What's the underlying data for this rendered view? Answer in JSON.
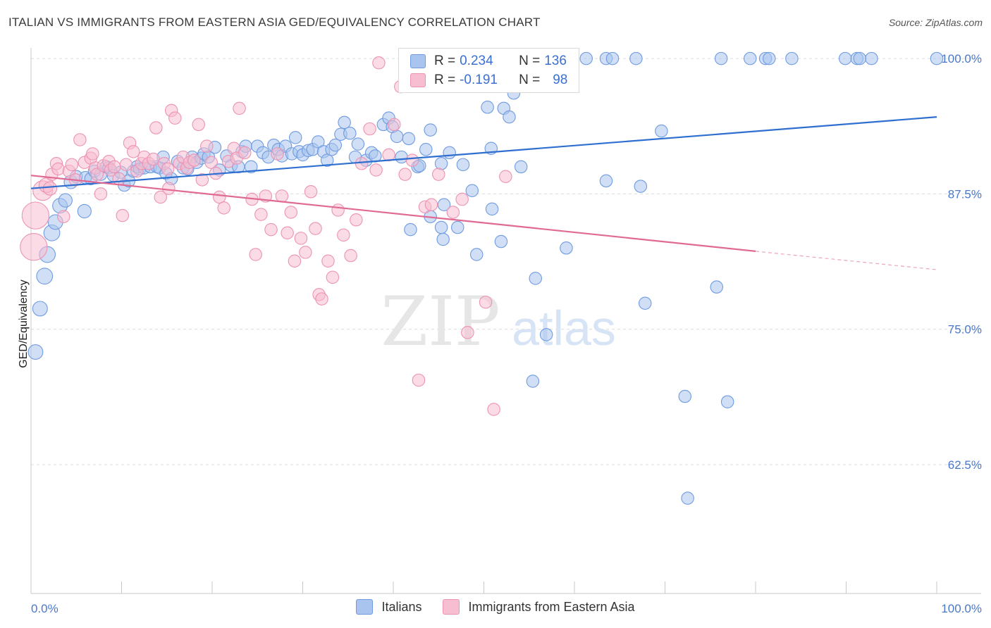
{
  "header": {
    "title": "ITALIAN VS IMMIGRANTS FROM EASTERN ASIA GED/EQUIVALENCY CORRELATION CHART",
    "source": "Source: ZipAtlas.com"
  },
  "watermark": {
    "zip": "ZIP",
    "atlas": "atlas"
  },
  "legend": {
    "r_label": "R =",
    "n_label": "N =",
    "rows": [
      {
        "r": "0.234",
        "n": "136"
      },
      {
        "r": "-0.191",
        "n": "98"
      }
    ]
  },
  "bottom_legend": [
    "Italians",
    "Immigrants from Eastern Asia"
  ],
  "colors": {
    "blue_fill": "#a9c4ee",
    "blue_stroke": "#6f9be0",
    "blue_line": "#2f6fd0",
    "pink_fill": "#f7bdd0",
    "pink_stroke": "#ec93b2",
    "pink_line": "#e06a93",
    "tick_text": "#4a78c9"
  },
  "chart_data": {
    "type": "scatter",
    "title": "ITALIAN VS IMMIGRANTS FROM EASTERN ASIA GED/EQUIVALENCY CORRELATION CHART",
    "xlabel": "",
    "ylabel": "GED/Equivalency",
    "xlim": [
      0,
      100
    ],
    "ylim": [
      50.6,
      101.5
    ],
    "x_tick_labels": [
      "0.0%",
      "100.0%"
    ],
    "y_ticks": [
      62.5,
      75.0,
      87.5,
      100.0
    ],
    "y_tick_labels": [
      "62.5%",
      "75.0%",
      "87.5%",
      "100.0%"
    ],
    "grid": true,
    "legend_position": "top-center",
    "series": [
      {
        "name": "Italians",
        "r": 0.234,
        "n": 136,
        "trend": {
          "x": [
            0,
            100
          ],
          "y": [
            88.0,
            94.6
          ]
        },
        "points": [
          [
            0.5,
            72.9,
            12
          ],
          [
            1.0,
            76.9,
            12
          ],
          [
            1.5,
            79.9,
            13
          ],
          [
            1.8,
            81.9,
            13
          ],
          [
            2.3,
            83.9,
            13
          ],
          [
            2.7,
            84.9,
            12
          ],
          [
            3.2,
            86.4,
            12
          ],
          [
            3.8,
            86.9,
            11
          ],
          [
            5.9,
            85.9,
            11
          ],
          [
            4.4,
            88.6,
            11
          ],
          [
            5.0,
            89.1,
            10
          ],
          [
            6.0,
            89.0,
            10
          ],
          [
            6.6,
            88.9,
            10
          ],
          [
            7.0,
            89.6,
            10
          ],
          [
            7.7,
            89.3,
            10
          ],
          [
            8.3,
            90.0,
            10
          ],
          [
            8.6,
            89.9,
            10
          ],
          [
            9.1,
            89.2,
            10
          ],
          [
            9.9,
            89.5,
            10
          ],
          [
            10.3,
            88.3,
            10
          ],
          [
            10.8,
            88.7,
            10
          ],
          [
            11.3,
            89.6,
            10
          ],
          [
            11.7,
            90.0,
            10
          ],
          [
            12.0,
            89.8,
            10
          ],
          [
            12.5,
            89.9,
            10
          ],
          [
            13.2,
            90.0,
            10
          ],
          [
            13.9,
            90.0,
            10
          ],
          [
            14.2,
            89.9,
            10
          ],
          [
            14.6,
            90.9,
            10
          ],
          [
            14.9,
            89.4,
            10
          ],
          [
            15.5,
            88.9,
            10
          ],
          [
            16.2,
            90.5,
            10
          ],
          [
            16.8,
            89.9,
            10
          ],
          [
            17.3,
            89.8,
            10
          ],
          [
            17.8,
            90.9,
            10
          ],
          [
            18.3,
            90.4,
            10
          ],
          [
            18.8,
            90.8,
            10
          ],
          [
            19.1,
            91.2,
            10
          ],
          [
            19.6,
            90.9,
            10
          ],
          [
            20.3,
            91.8,
            10
          ],
          [
            20.8,
            89.7,
            10
          ],
          [
            21.6,
            91.0,
            10
          ],
          [
            22.1,
            90.1,
            10
          ],
          [
            22.9,
            90.0,
            10
          ],
          [
            23.3,
            91.4,
            10
          ],
          [
            23.7,
            91.9,
            10
          ],
          [
            24.3,
            90.0,
            10
          ],
          [
            25.0,
            91.9,
            10
          ],
          [
            25.6,
            91.3,
            10
          ],
          [
            26.2,
            90.9,
            10
          ],
          [
            26.8,
            92.0,
            10
          ],
          [
            27.3,
            91.6,
            10
          ],
          [
            27.7,
            91.0,
            10
          ],
          [
            28.1,
            91.9,
            10
          ],
          [
            28.8,
            91.2,
            10
          ],
          [
            29.2,
            92.7,
            10
          ],
          [
            29.6,
            91.4,
            10
          ],
          [
            30.0,
            91.1,
            10
          ],
          [
            30.6,
            91.5,
            10
          ],
          [
            31.1,
            91.6,
            10
          ],
          [
            31.7,
            92.3,
            10
          ],
          [
            32.3,
            91.4,
            10
          ],
          [
            32.7,
            90.6,
            10
          ],
          [
            33.2,
            91.6,
            10
          ],
          [
            33.6,
            92.0,
            10
          ],
          [
            34.2,
            93.0,
            10
          ],
          [
            34.6,
            94.1,
            10
          ],
          [
            35.2,
            93.1,
            10
          ],
          [
            35.8,
            90.9,
            10
          ],
          [
            36.1,
            92.1,
            10
          ],
          [
            37.0,
            90.6,
            10
          ],
          [
            37.6,
            91.3,
            10
          ],
          [
            38.0,
            91.0,
            10
          ],
          [
            38.9,
            93.9,
            10
          ],
          [
            39.5,
            94.5,
            10
          ],
          [
            39.9,
            93.7,
            10
          ],
          [
            40.4,
            92.8,
            10
          ],
          [
            40.9,
            90.9,
            10
          ],
          [
            41.7,
            92.6,
            10
          ],
          [
            42.7,
            90.0,
            10
          ],
          [
            42.9,
            90.1,
            10
          ],
          [
            43.6,
            91.6,
            10
          ],
          [
            44.1,
            93.4,
            10
          ],
          [
            45.3,
            90.3,
            10
          ],
          [
            45.6,
            86.5,
            10
          ],
          [
            46.2,
            91.3,
            10
          ],
          [
            47.7,
            90.2,
            10
          ],
          [
            48.7,
            87.8,
            10
          ],
          [
            44.1,
            85.4,
            10
          ],
          [
            41.9,
            84.2,
            10
          ],
          [
            45.3,
            84.4,
            10
          ],
          [
            47.1,
            84.4,
            10
          ],
          [
            45.5,
            83.3,
            10
          ],
          [
            49.3,
            98.9,
            10
          ],
          [
            50.4,
            95.5,
            10
          ],
          [
            50.8,
            91.7,
            10
          ],
          [
            50.9,
            86.1,
            10
          ],
          [
            51.9,
            83.1,
            10
          ],
          [
            52.2,
            95.4,
            10
          ],
          [
            52.8,
            94.6,
            10
          ],
          [
            53.3,
            96.8,
            10
          ],
          [
            53.6,
            98.1,
            10
          ],
          [
            54.1,
            90.0,
            10
          ],
          [
            59.1,
            82.5,
            10
          ],
          [
            49.2,
            81.9,
            10
          ],
          [
            55.7,
            79.7,
            10
          ],
          [
            56.9,
            74.5,
            10
          ],
          [
            55.4,
            70.2,
            10
          ],
          [
            84.0,
            100.0,
            10
          ],
          [
            63.5,
            88.7,
            10
          ],
          [
            69.6,
            93.3,
            10
          ],
          [
            75.7,
            78.9,
            10
          ],
          [
            76.9,
            68.3,
            10
          ],
          [
            72.2,
            68.8,
            10
          ],
          [
            67.8,
            77.4,
            10
          ],
          [
            67.3,
            88.2,
            10
          ],
          [
            72.5,
            59.4,
            10
          ],
          [
            61.3,
            100.0,
            10
          ],
          [
            63.5,
            100.0,
            10
          ],
          [
            64.2,
            100.0,
            10
          ],
          [
            66.8,
            100.0,
            10
          ],
          [
            76.2,
            100.0,
            10
          ],
          [
            79.4,
            100.0,
            10
          ],
          [
            81.1,
            100.0,
            10
          ],
          [
            81.5,
            100.0,
            10
          ],
          [
            89.9,
            100.0,
            10
          ],
          [
            91.2,
            100.0,
            10
          ],
          [
            91.5,
            100.0,
            10
          ],
          [
            92.8,
            100.0,
            10
          ],
          [
            100.0,
            100.0,
            10
          ],
          [
            56.8,
            100.0,
            10
          ],
          [
            59.4,
            100.0,
            10
          ],
          [
            43.1,
            100.0,
            10
          ],
          [
            44.0,
            100.0,
            10
          ],
          [
            48.0,
            100.0,
            10
          ],
          [
            56.6,
            100.0,
            10
          ]
        ]
      },
      {
        "name": "Immigrants from Eastern Asia",
        "r": -0.191,
        "n": 98,
        "trend": {
          "x": [
            0,
            80
          ],
          "y": [
            89.2,
            82.2
          ]
        },
        "trend_extension": {
          "x": [
            80,
            100
          ],
          "y": [
            82.2,
            80.5
          ]
        },
        "points": [
          [
            0.3,
            82.6,
            22
          ],
          [
            0.5,
            85.5,
            22
          ],
          [
            1.3,
            87.8,
            16
          ],
          [
            1.7,
            88.3,
            12
          ],
          [
            2.1,
            88.0,
            11
          ],
          [
            2.3,
            89.3,
            10
          ],
          [
            2.8,
            90.3,
            10
          ],
          [
            3.0,
            89.8,
            10
          ],
          [
            3.6,
            85.4,
            10
          ],
          [
            4.2,
            89.6,
            10
          ],
          [
            4.5,
            90.2,
            10
          ],
          [
            4.9,
            88.8,
            10
          ],
          [
            5.4,
            92.5,
            10
          ],
          [
            5.9,
            90.4,
            10
          ],
          [
            6.6,
            90.8,
            10
          ],
          [
            6.8,
            91.2,
            10
          ],
          [
            7.1,
            89.9,
            10
          ],
          [
            7.3,
            89.3,
            10
          ],
          [
            7.7,
            87.5,
            10
          ],
          [
            8.0,
            90.1,
            10
          ],
          [
            8.6,
            90.5,
            10
          ],
          [
            8.8,
            89.7,
            10
          ],
          [
            9.2,
            90.0,
            10
          ],
          [
            9.7,
            88.9,
            10
          ],
          [
            10.1,
            85.5,
            10
          ],
          [
            10.5,
            90.2,
            10
          ],
          [
            10.9,
            92.2,
            10
          ],
          [
            11.3,
            91.4,
            10
          ],
          [
            11.7,
            89.6,
            10
          ],
          [
            12.2,
            90.3,
            10
          ],
          [
            12.5,
            90.9,
            10
          ],
          [
            13.0,
            90.3,
            10
          ],
          [
            13.5,
            90.7,
            10
          ],
          [
            13.8,
            93.6,
            10
          ],
          [
            14.3,
            87.2,
            10
          ],
          [
            14.7,
            90.3,
            10
          ],
          [
            15.1,
            89.8,
            10
          ],
          [
            15.2,
            88.0,
            10
          ],
          [
            15.5,
            95.2,
            10
          ],
          [
            15.9,
            94.5,
            10
          ],
          [
            16.4,
            90.3,
            10
          ],
          [
            16.8,
            90.9,
            10
          ],
          [
            17.2,
            89.9,
            10
          ],
          [
            17.5,
            90.4,
            10
          ],
          [
            18.0,
            90.6,
            10
          ],
          [
            18.5,
            93.9,
            10
          ],
          [
            18.9,
            88.8,
            10
          ],
          [
            19.4,
            91.9,
            10
          ],
          [
            19.9,
            90.4,
            10
          ],
          [
            20.4,
            89.4,
            10
          ],
          [
            20.8,
            87.2,
            10
          ],
          [
            21.3,
            86.2,
            10
          ],
          [
            21.8,
            90.5,
            10
          ],
          [
            22.4,
            91.7,
            10
          ],
          [
            22.7,
            90.8,
            10
          ],
          [
            23.0,
            95.4,
            10
          ],
          [
            23.6,
            91.3,
            10
          ],
          [
            24.4,
            87.0,
            10
          ],
          [
            24.8,
            81.9,
            10
          ],
          [
            25.4,
            85.6,
            10
          ],
          [
            25.9,
            87.3,
            10
          ],
          [
            26.5,
            84.2,
            10
          ],
          [
            27.2,
            91.2,
            10
          ],
          [
            27.7,
            87.3,
            10
          ],
          [
            28.3,
            83.9,
            10
          ],
          [
            28.7,
            85.8,
            10
          ],
          [
            29.1,
            81.3,
            10
          ],
          [
            29.8,
            83.4,
            10
          ],
          [
            30.3,
            82.1,
            10
          ],
          [
            30.9,
            87.7,
            10
          ],
          [
            31.4,
            84.3,
            10
          ],
          [
            31.8,
            78.2,
            10
          ],
          [
            32.1,
            77.8,
            10
          ],
          [
            32.8,
            81.3,
            10
          ],
          [
            33.3,
            79.8,
            10
          ],
          [
            33.9,
            86.0,
            10
          ],
          [
            34.5,
            83.7,
            10
          ],
          [
            35.3,
            81.8,
            10
          ],
          [
            35.9,
            85.1,
            10
          ],
          [
            36.5,
            90.3,
            10
          ],
          [
            37.4,
            93.5,
            10
          ],
          [
            38.1,
            89.7,
            10
          ],
          [
            38.4,
            99.6,
            10
          ],
          [
            39.5,
            91.1,
            10
          ],
          [
            40.1,
            93.9,
            10
          ],
          [
            40.8,
            97.4,
            10
          ],
          [
            41.3,
            89.3,
            10
          ],
          [
            42.1,
            90.6,
            10
          ],
          [
            42.8,
            70.3,
            10
          ],
          [
            43.5,
            86.3,
            10
          ],
          [
            44.2,
            86.5,
            10
          ],
          [
            45.0,
            89.3,
            10
          ],
          [
            46.6,
            85.8,
            10
          ],
          [
            47.6,
            87.0,
            10
          ],
          [
            48.2,
            74.7,
            10
          ],
          [
            50.2,
            77.5,
            10
          ],
          [
            51.1,
            67.6,
            10
          ],
          [
            52.4,
            89.1,
            10
          ]
        ]
      }
    ]
  }
}
